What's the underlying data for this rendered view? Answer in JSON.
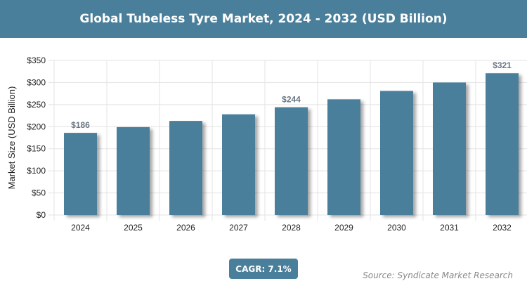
{
  "chart_data": {
    "type": "bar",
    "title": "Global Tubeless Tyre Market, 2024 - 2032 (USD Billion)",
    "xlabel": "",
    "ylabel": "Market Size (USD Billion)",
    "categories": [
      "2024",
      "2025",
      "2026",
      "2027",
      "2028",
      "2029",
      "2030",
      "2031",
      "2032"
    ],
    "values": [
      186,
      199,
      213,
      228,
      244,
      262,
      281,
      300,
      321
    ],
    "data_labels": {
      "0": "$186",
      "4": "$244",
      "8": "$321"
    },
    "ylim": [
      0,
      350
    ],
    "yticks": [
      0,
      50,
      100,
      150,
      200,
      250,
      300,
      350
    ],
    "ytick_labels": [
      "$0",
      "$50",
      "$100",
      "$150",
      "$200",
      "$250",
      "$300",
      "$350"
    ],
    "grid": true,
    "bar_color": "#4a7f9b"
  },
  "cagr_label": "CAGR: 7.1%",
  "source": "Source: Syndicate Market Research"
}
